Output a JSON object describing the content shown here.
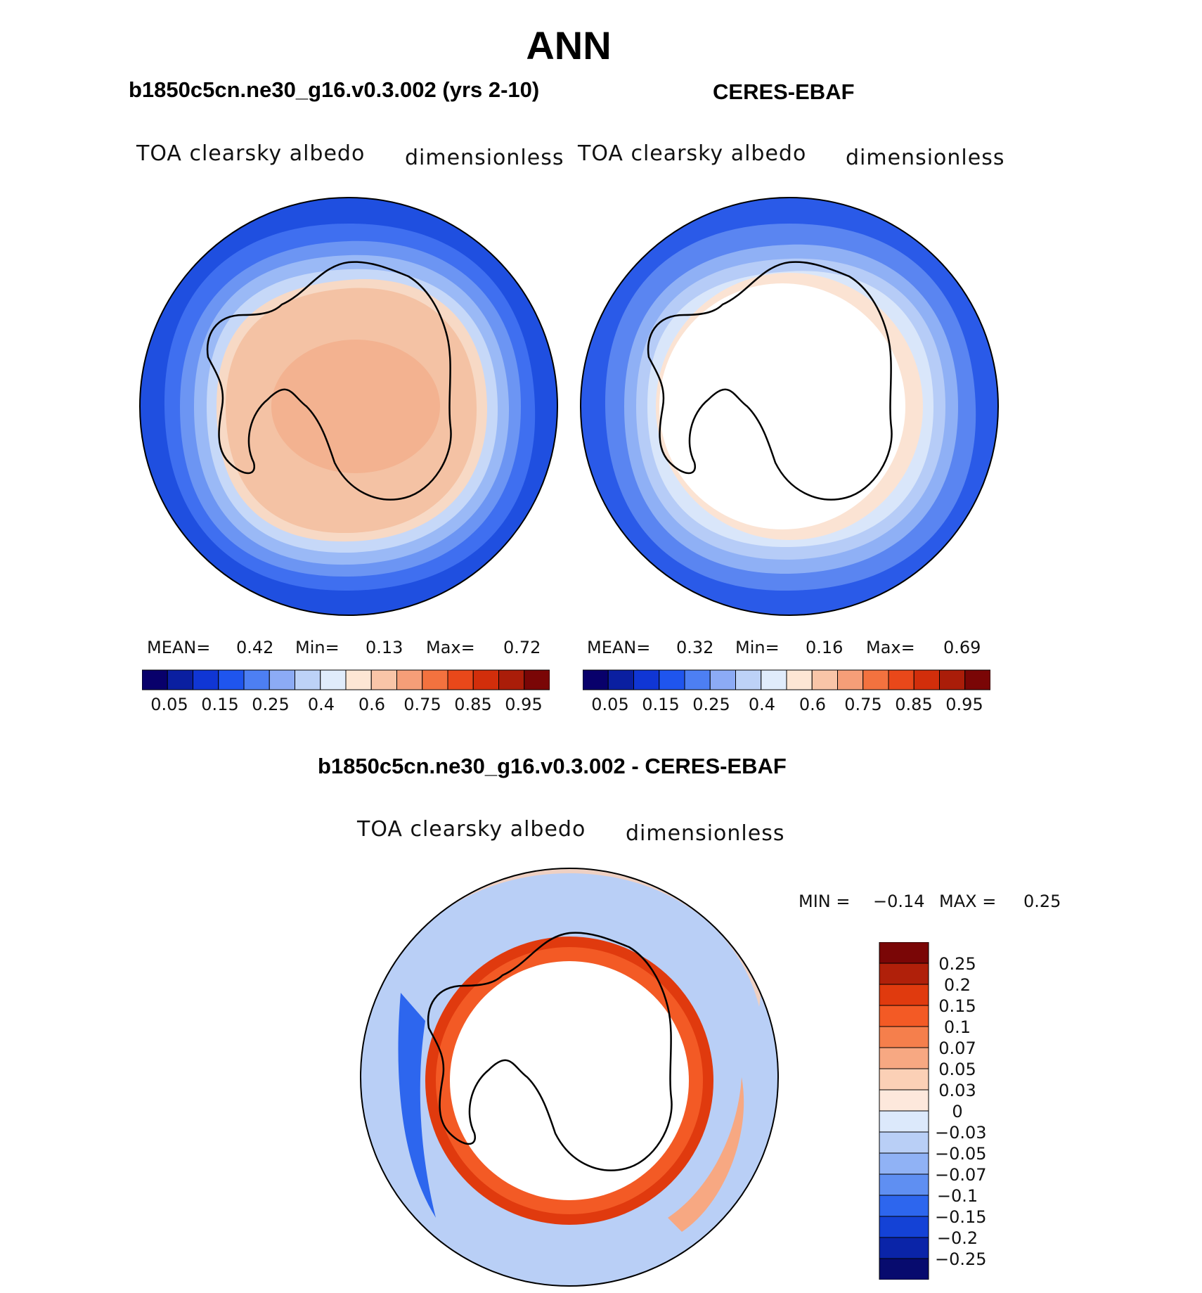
{
  "figure": {
    "season": "ANN",
    "panels": [
      {
        "case_title": "b1850c5cn.ne30_g16.v0.3.002 (yrs 2-10)",
        "field_label": "TOA clearsky albedo",
        "units": "dimensionless",
        "stats": {
          "mean_label": "MEAN=",
          "mean": "0.42",
          "min_label": "Min=",
          "min": "0.13",
          "max_label": "Max=",
          "max": "0.72"
        }
      },
      {
        "case_title": "CERES-EBAF",
        "field_label": "TOA clearsky albedo",
        "units": "dimensionless",
        "stats": {
          "mean_label": "MEAN=",
          "mean": "0.32",
          "min_label": "Min=",
          "min": "0.16",
          "max_label": "Max=",
          "max": "0.69"
        }
      }
    ],
    "diff_panel": {
      "case_title": "b1850c5cn.ne30_g16.v0.3.002 - CERES-EBAF",
      "field_label": "TOA clearsky albedo",
      "units": "dimensionless",
      "min_label": "MIN =",
      "min": "−0.14",
      "max_label": "MAX =",
      "max": "0.25"
    },
    "abs_colorbar": {
      "labels": [
        "0.05",
        "0.15",
        "0.25",
        "0.4",
        "0.6",
        "0.75",
        "0.85",
        "0.95"
      ],
      "colors": [
        "#08006b",
        "#0a1fa0",
        "#1036d4",
        "#1f55ee",
        "#4d7ff3",
        "#8cabf5",
        "#bdd2f7",
        "#e0ecfb",
        "#fde6d4",
        "#f9c5a8",
        "#f59e78",
        "#f3723f",
        "#e9481a",
        "#d22e0b",
        "#aa1d09",
        "#7a0606"
      ]
    },
    "diff_colorbar": {
      "labels": [
        "0.25",
        "0.2",
        "0.15",
        "0.1",
        "0.07",
        "0.05",
        "0.03",
        "0",
        "−0.03",
        "−0.05",
        "−0.07",
        "−0.1",
        "−0.15",
        "−0.2",
        "−0.25"
      ],
      "colors": [
        "#7a0606",
        "#b0200a",
        "#e03a0e",
        "#f35a25",
        "#f57f4c",
        "#f7a882",
        "#fbd0b6",
        "#fde8dc",
        "#dce9fb",
        "#b9cff6",
        "#90b2f5",
        "#5f8ff2",
        "#2d66ee",
        "#1442d6",
        "#0a24a8",
        "#070b6e"
      ]
    }
  }
}
